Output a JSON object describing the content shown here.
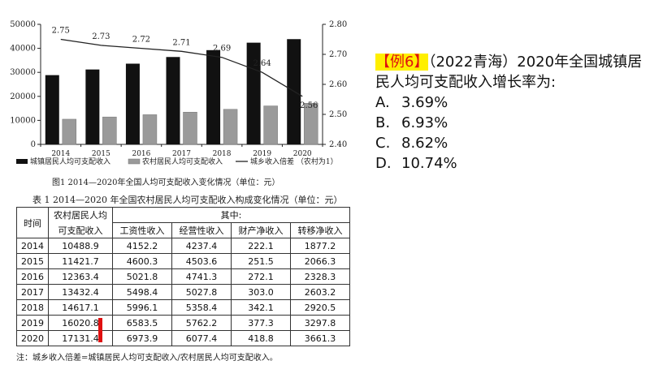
{
  "chart_data": {
    "type": "bar",
    "categories": [
      "2014",
      "2015",
      "2016",
      "2017",
      "2018",
      "2019",
      "2020"
    ],
    "series": [
      {
        "name": "城镇居民人均可支配收入",
        "type": "bar",
        "color": "#111111",
        "values": [
          28844,
          31195,
          33616,
          36396,
          39251,
          42359,
          43834
        ]
      },
      {
        "name": "农村居民人均可支配收入",
        "type": "bar",
        "color": "#9a9a9a",
        "values": [
          10489,
          11422,
          12363,
          13432,
          14617,
          16021,
          17131
        ]
      },
      {
        "name": "城乡收入倍差 （农村为1）",
        "type": "line",
        "axis": "right",
        "color": "#222222",
        "values": [
          2.75,
          2.73,
          2.72,
          2.71,
          2.69,
          2.64,
          2.56
        ]
      }
    ],
    "left_axis": {
      "ylim": [
        0,
        50000
      ],
      "ticks": [
        "0",
        "10000",
        "20000",
        "30000",
        "40000",
        "50000"
      ]
    },
    "right_axis": {
      "ylim": [
        2.4,
        2.8
      ],
      "ticks": [
        "2.40",
        "2.50",
        "2.60",
        "2.70",
        "2.80"
      ]
    },
    "line_labels": [
      "2.75",
      "2.73",
      "2.72",
      "2.71",
      "2.69",
      "2.64",
      "2.56"
    ],
    "legend_position": "bottom",
    "title": "图1 2014—2020年全国人均可支配收入变化情况（单位：元）"
  },
  "table": {
    "caption": "表 1 2014—2020 年全国农村居民人均可支配收入构成变化情况（单位：元）",
    "head_time": "时间",
    "head_rural": "农村居民人均",
    "head_rural2": "可支配收入",
    "head_group": "其中:",
    "sub_headers": [
      "工资性收入",
      "经营性收入",
      "财产净收入",
      "转移净收入"
    ],
    "rows": [
      [
        "2014",
        "10488.9",
        "4152.2",
        "4237.4",
        "222.1",
        "1877.2"
      ],
      [
        "2015",
        "11421.7",
        "4600.3",
        "4503.6",
        "251.5",
        "2066.3"
      ],
      [
        "2016",
        "12363.4",
        "5021.8",
        "4741.3",
        "272.1",
        "2328.3"
      ],
      [
        "2017",
        "13432.4",
        "5498.4",
        "5027.8",
        "303.0",
        "2603.2"
      ],
      [
        "2018",
        "14617.1",
        "5996.1",
        "5358.4",
        "342.1",
        "2920.5"
      ],
      [
        "2019",
        "16020.8",
        "6583.5",
        "5762.2",
        "377.3",
        "3297.8"
      ],
      [
        "2020",
        "17131.4",
        "6973.9",
        "6077.4",
        "418.8",
        "3661.3"
      ]
    ],
    "note": "注：城乡收入倍差=城镇居民人均可支配收入/农村居民人均可支配收入。",
    "highlight_color": "#e01010"
  },
  "question": {
    "tag": "【例6】",
    "source": "（2022青海）2020年全国城镇居民人均可支配收入增长率为:",
    "tag_bg": "#ffef00",
    "tag_color": "#e01010",
    "options": [
      {
        "letter": "A.",
        "text": "3.69%"
      },
      {
        "letter": "B.",
        "text": "6.93%"
      },
      {
        "letter": "C.",
        "text": "8.62%"
      },
      {
        "letter": "D.",
        "text": "10.74%"
      }
    ]
  }
}
